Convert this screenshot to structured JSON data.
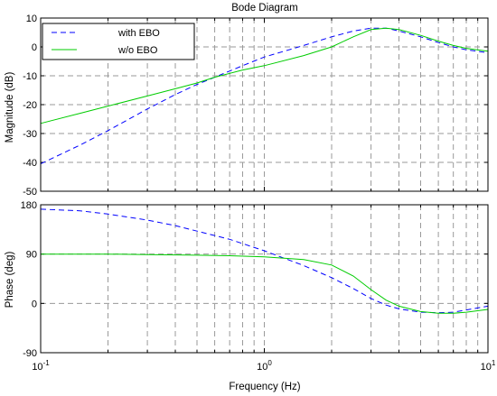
{
  "chart_data": [
    {
      "type": "line",
      "title": "Bode Diagram",
      "xlabel": "",
      "ylabel": "Magnitude (dB)",
      "xscale": "log",
      "xlim": [
        0.1,
        10
      ],
      "ylim": [
        -50,
        10
      ],
      "yticks": [
        "10",
        "0",
        "-10",
        "-20",
        "-30",
        "-40",
        "-50"
      ],
      "grid": true,
      "legend_position": "top-left",
      "series": [
        {
          "name": "with EBO",
          "color": "#0000ff",
          "style": "dashed",
          "x": [
            0.1,
            0.15,
            0.2,
            0.3,
            0.4,
            0.5,
            0.6,
            0.8,
            1.0,
            1.5,
            2.0,
            2.5,
            3.0,
            3.5,
            4.0,
            5.0,
            6.0,
            7.0,
            8.0,
            10.0
          ],
          "y": [
            -40.5,
            -34,
            -29,
            -21.5,
            -16.5,
            -13,
            -10.5,
            -6.5,
            -3.5,
            0.5,
            3.5,
            5.5,
            6.5,
            6.5,
            5.5,
            3.5,
            1.5,
            0,
            -1,
            -2
          ]
        },
        {
          "name": "w/o EBO",
          "color": "#00cc00",
          "style": "solid",
          "x": [
            0.1,
            0.15,
            0.2,
            0.3,
            0.4,
            0.5,
            0.6,
            0.8,
            1.0,
            1.5,
            2.0,
            2.5,
            3.0,
            3.5,
            4.0,
            5.0,
            6.0,
            7.0,
            8.0,
            10.0
          ],
          "y": [
            -26.5,
            -23,
            -20.5,
            -17,
            -14.5,
            -12.5,
            -10.5,
            -8,
            -6.5,
            -3,
            0,
            3.5,
            6,
            6.5,
            6,
            4,
            2,
            0.5,
            -0.5,
            -1.5
          ]
        }
      ]
    },
    {
      "type": "line",
      "title": "",
      "xlabel": "Frequency  (Hz)",
      "ylabel": "Phase (deg)",
      "xscale": "log",
      "xlim": [
        0.1,
        10
      ],
      "ylim": [
        -90,
        180
      ],
      "yticks": [
        "180",
        "90",
        "0",
        "-90"
      ],
      "xticks": [
        "10^-1",
        "10^0",
        "10^1"
      ],
      "grid": true,
      "series": [
        {
          "name": "with EBO",
          "color": "#0000ff",
          "style": "dashed",
          "x": [
            0.1,
            0.15,
            0.2,
            0.3,
            0.4,
            0.5,
            0.7,
            1.0,
            1.5,
            2.0,
            2.5,
            3.0,
            3.5,
            4.0,
            5.0,
            6.0,
            7.0,
            8.0,
            10.0
          ],
          "y": [
            172,
            169,
            163,
            152,
            142,
            132,
            117,
            96,
            69,
            47,
            27,
            9,
            -3,
            -10,
            -16,
            -17,
            -16,
            -12,
            -5
          ]
        },
        {
          "name": "w/o EBO",
          "color": "#00cc00",
          "style": "solid",
          "x": [
            0.1,
            0.2,
            0.3,
            0.5,
            0.7,
            1.0,
            1.5,
            2.0,
            2.5,
            3.0,
            3.5,
            4.0,
            5.0,
            6.0,
            7.0,
            8.0,
            10.0
          ],
          "y": [
            90,
            90,
            89,
            88,
            87,
            85,
            80,
            70,
            50,
            25,
            6,
            -5,
            -15,
            -18,
            -18,
            -16,
            -11
          ]
        }
      ]
    }
  ]
}
